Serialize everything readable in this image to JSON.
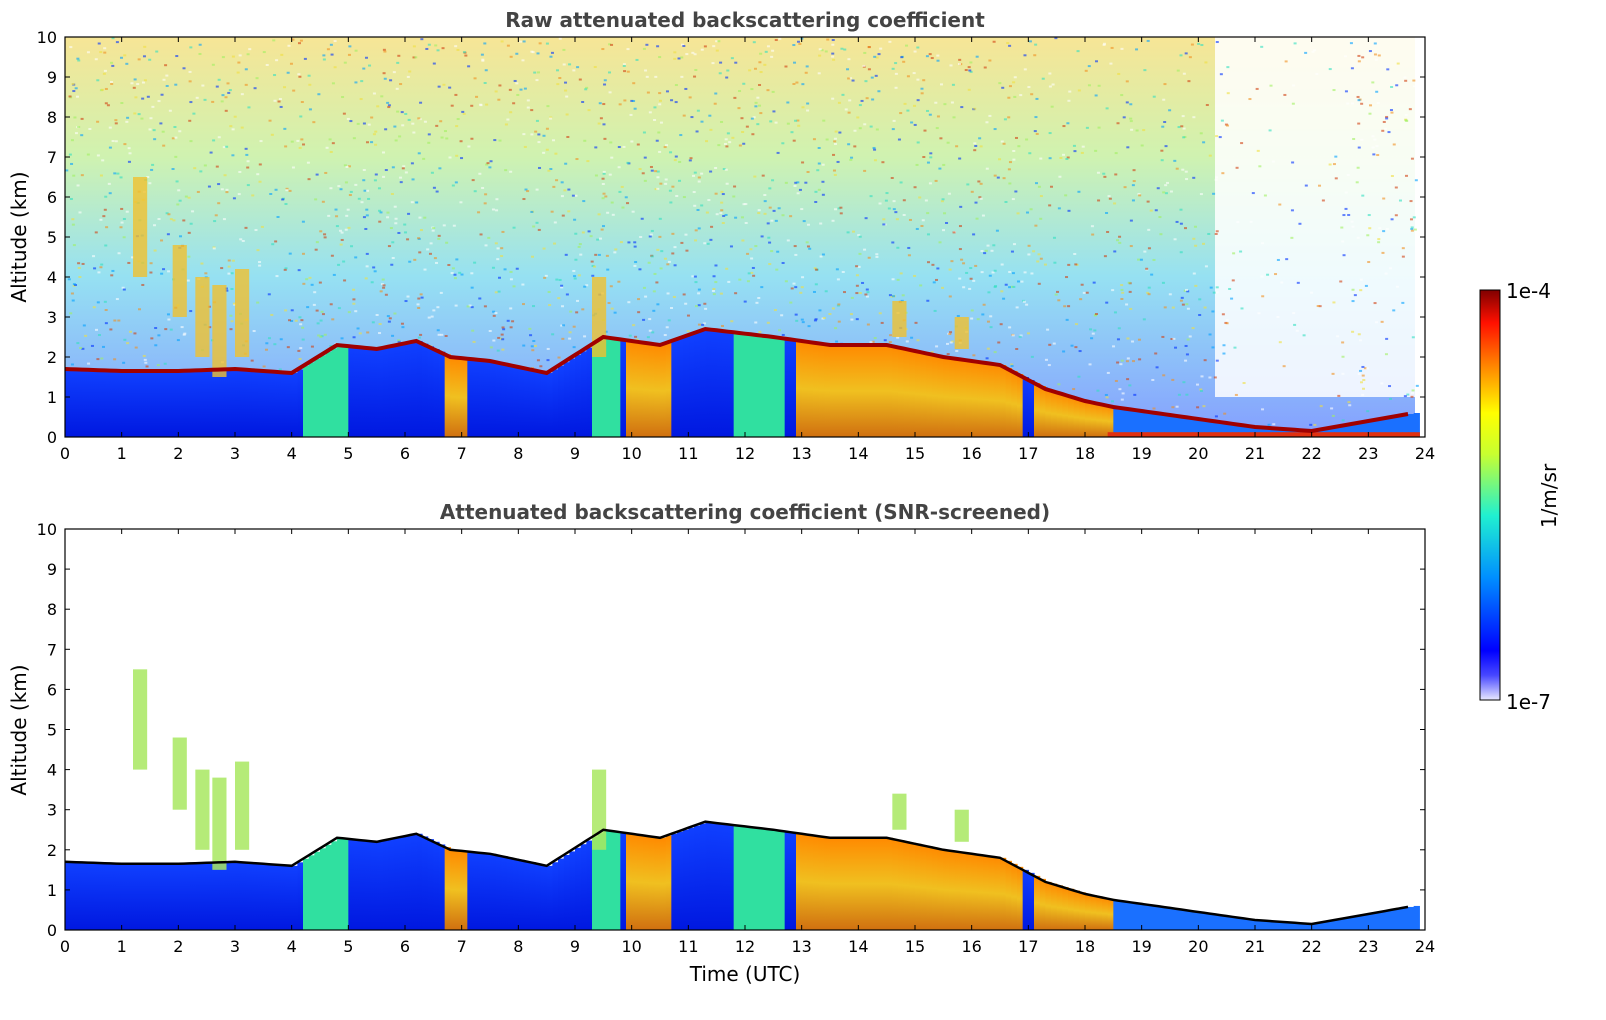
{
  "chart_data": [
    {
      "type": "heatmap",
      "title": "Raw attenuated backscattering coefficient",
      "xlabel": "",
      "ylabel": "Altitude (km)",
      "xlim": [
        0,
        24
      ],
      "ylim": [
        0,
        10
      ],
      "xticks": [
        "0",
        "1",
        "2",
        "3",
        "4",
        "5",
        "6",
        "7",
        "8",
        "9",
        "10",
        "11",
        "12",
        "13",
        "14",
        "15",
        "16",
        "17",
        "18",
        "19",
        "20",
        "21",
        "22",
        "23",
        "24"
      ],
      "yticks": [
        "0",
        "1",
        "2",
        "3",
        "4",
        "5",
        "6",
        "7",
        "8",
        "9",
        "10"
      ],
      "grid": false,
      "layer_top_km": [
        [
          0,
          1.7
        ],
        [
          1,
          1.65
        ],
        [
          2,
          1.65
        ],
        [
          3,
          1.7
        ],
        [
          4,
          1.6
        ],
        [
          4.8,
          2.3
        ],
        [
          5.5,
          2.2
        ],
        [
          6.2,
          2.4
        ],
        [
          6.8,
          2.0
        ],
        [
          7.5,
          1.9
        ],
        [
          8.5,
          1.6
        ],
        [
          9.5,
          2.5
        ],
        [
          10.5,
          2.3
        ],
        [
          11.3,
          2.7
        ],
        [
          12.5,
          2.5
        ],
        [
          13.5,
          2.3
        ],
        [
          14.5,
          2.3
        ],
        [
          15.5,
          2.0
        ],
        [
          16.5,
          1.8
        ],
        [
          17.3,
          1.2
        ],
        [
          18.0,
          0.9
        ],
        [
          18.5,
          0.75
        ],
        [
          19.5,
          0.55
        ],
        [
          21.0,
          0.25
        ],
        [
          22.0,
          0.15
        ],
        [
          23.0,
          0.4
        ],
        [
          23.8,
          0.6
        ]
      ]
    },
    {
      "type": "heatmap",
      "title": "Attenuated backscattering coefficient (SNR-screened)",
      "xlabel": "Time (UTC)",
      "ylabel": "Altitude (km)",
      "xlim": [
        0,
        24
      ],
      "ylim": [
        0,
        10
      ],
      "xticks": [
        "0",
        "1",
        "2",
        "3",
        "4",
        "5",
        "6",
        "7",
        "8",
        "9",
        "10",
        "11",
        "12",
        "13",
        "14",
        "15",
        "16",
        "17",
        "18",
        "19",
        "20",
        "21",
        "22",
        "23",
        "24"
      ],
      "yticks": [
        "0",
        "1",
        "2",
        "3",
        "4",
        "5",
        "6",
        "7",
        "8",
        "9",
        "10"
      ],
      "grid": false
    }
  ],
  "colorbar": {
    "label": "1/m/sr",
    "max_label": "1e-4",
    "min_label": "1e-7",
    "colormap": "jet",
    "colors": [
      "#ffffff",
      "#0000ff",
      "#00a0ff",
      "#30ffc0",
      "#ffff00",
      "#ff8000",
      "#ff0000",
      "#7f0000"
    ]
  }
}
